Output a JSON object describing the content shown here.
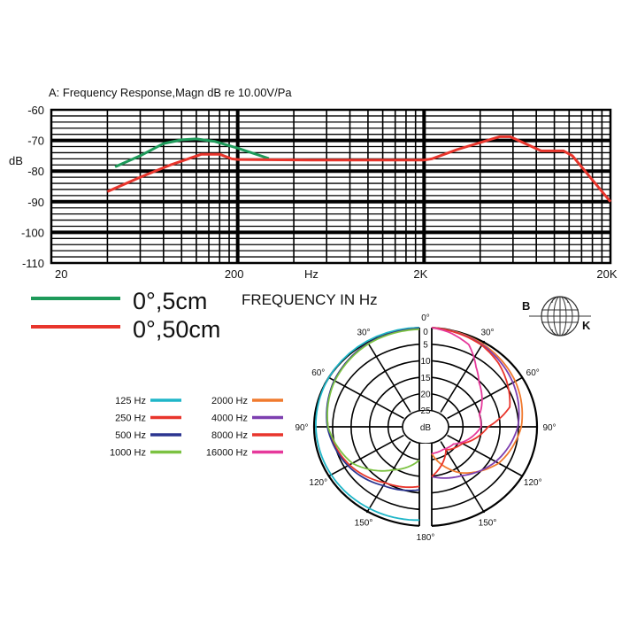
{
  "chart_data": [
    {
      "type": "line",
      "title": "A: Frequency Response,Magn dB re 10.00V/Pa",
      "xlabel": "Hz",
      "ylabel": "dB",
      "x_scale": "log",
      "xlim": [
        20,
        20000
      ],
      "ylim": [
        -110,
        -60
      ],
      "x_tick_labels": [
        "20",
        "200",
        "2K",
        "20K"
      ],
      "x_tick_values": [
        20,
        200,
        2000,
        20000
      ],
      "y_tick_labels": [
        "-60",
        "-70",
        "-80",
        "-90",
        "-100",
        "-110"
      ],
      "y_tick_values": [
        -60,
        -70,
        -80,
        -90,
        -100,
        -110
      ],
      "grid": true,
      "caption": "FREQUENCY IN Hz",
      "series": [
        {
          "name": "0°,5cm",
          "color": "#1e9a5a",
          "points": [
            [
              44,
              -78.6
            ],
            [
              60,
              -75
            ],
            [
              80,
              -71
            ],
            [
              100,
              -69.8
            ],
            [
              120,
              -69.5
            ],
            [
              150,
              -70.3
            ],
            [
              200,
              -72.5
            ],
            [
              294,
              -75.9
            ]
          ]
        },
        {
          "name": "0°,50cm",
          "color": "#e8352c",
          "points": [
            [
              40,
              -86.7
            ],
            [
              60,
              -82
            ],
            [
              88,
              -77.9
            ],
            [
              128,
              -74.5
            ],
            [
              160,
              -74.5
            ],
            [
              186,
              -76
            ],
            [
              200,
              -76.2
            ],
            [
              500,
              -76.4
            ],
            [
              2000,
              -76.4
            ],
            [
              2200,
              -76
            ],
            [
              3000,
              -73
            ],
            [
              5070,
              -68.8
            ],
            [
              5800,
              -68.8
            ],
            [
              8500,
              -73.4
            ],
            [
              11200,
              -73.4
            ],
            [
              12500,
              -75
            ],
            [
              20000,
              -90
            ]
          ]
        }
      ]
    },
    {
      "type": "polar",
      "radial_unit": "dB",
      "radial_tick_labels": [
        "0",
        "5",
        "10",
        "15",
        "20",
        "25"
      ],
      "radial_tick_values": [
        0,
        5,
        10,
        15,
        20,
        25
      ],
      "center_label": "dB",
      "angle_labels": [
        "0°",
        "30°",
        "60°",
        "90°",
        "120°",
        "150°",
        "180°"
      ],
      "angle_values": [
        0,
        30,
        60,
        90,
        120,
        150,
        180
      ],
      "series": [
        {
          "name": "125 Hz",
          "color": "#1fb6c8",
          "side": "left",
          "points": [
            [
              0,
              0
            ],
            [
              60,
              0.2
            ],
            [
              90,
              0.5
            ],
            [
              120,
              1
            ],
            [
              150,
              1.5
            ],
            [
              180,
              1.8
            ]
          ]
        },
        {
          "name": "250 Hz",
          "color": "#e8352c",
          "side": "left",
          "points": [
            [
              0,
              0.3
            ],
            [
              30,
              0.8
            ],
            [
              60,
              2
            ],
            [
              90,
              4
            ],
            [
              120,
              7
            ],
            [
              150,
              10.5
            ],
            [
              180,
              12
            ]
          ]
        },
        {
          "name": "500 Hz",
          "color": "#2b3590",
          "side": "left",
          "points": [
            [
              0,
              0.3
            ],
            [
              30,
              0.8
            ],
            [
              60,
              2
            ],
            [
              90,
              3.8
            ],
            [
              120,
              6.5
            ],
            [
              150,
              9.5
            ],
            [
              180,
              11
            ]
          ]
        },
        {
          "name": "1000 Hz",
          "color": "#7cc242",
          "side": "left",
          "points": [
            [
              0,
              0.5
            ],
            [
              30,
              1
            ],
            [
              60,
              2.2
            ],
            [
              90,
              4
            ],
            [
              120,
              8
            ],
            [
              150,
              15
            ],
            [
              180,
              20
            ]
          ]
        },
        {
          "name": "2000 Hz",
          "color": "#f07a2e",
          "side": "right",
          "points": [
            [
              0,
              0
            ],
            [
              30,
              1
            ],
            [
              60,
              2.5
            ],
            [
              90,
              4.5
            ],
            [
              120,
              8
            ],
            [
              150,
              14
            ],
            [
              180,
              22
            ]
          ]
        },
        {
          "name": "4000 Hz",
          "color": "#7d3fb0",
          "side": "right",
          "points": [
            [
              0,
              0
            ],
            [
              30,
              1.3
            ],
            [
              60,
              3.3
            ],
            [
              90,
              5.5
            ],
            [
              120,
              9
            ],
            [
              150,
              13
            ],
            [
              180,
              15
            ]
          ]
        },
        {
          "name": "8000 Hz",
          "color": "#e8352c",
          "side": "right",
          "points": [
            [
              0,
              0
            ],
            [
              30,
              1.5
            ],
            [
              45,
              3
            ],
            [
              60,
              5
            ],
            [
              75,
              7
            ],
            [
              90,
              14
            ],
            [
              120,
              20
            ],
            [
              150,
              22
            ],
            [
              180,
              15
            ]
          ]
        },
        {
          "name": "16000 Hz",
          "color": "#e6399b",
          "side": "right",
          "points": [
            [
              0,
              0
            ],
            [
              10,
              1
            ],
            [
              23,
              3
            ],
            [
              35,
              8
            ],
            [
              45,
              11
            ],
            [
              75,
              16
            ],
            [
              90,
              16
            ],
            [
              110,
              19
            ],
            [
              130,
              22
            ],
            [
              155,
              22.5
            ],
            [
              180,
              22
            ]
          ]
        }
      ]
    }
  ],
  "logo": {
    "left": "B",
    "right": "K"
  }
}
